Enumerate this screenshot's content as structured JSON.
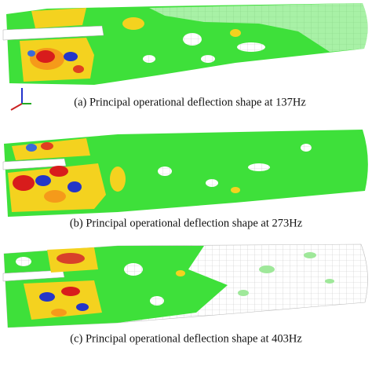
{
  "figure": {
    "captions": [
      "(a)  Principal operational deflection shape at 137Hz",
      "(b)  Principal operational deflection shape at 273Hz",
      "(c)  Principal operational deflection shape at 403Hz"
    ]
  }
}
